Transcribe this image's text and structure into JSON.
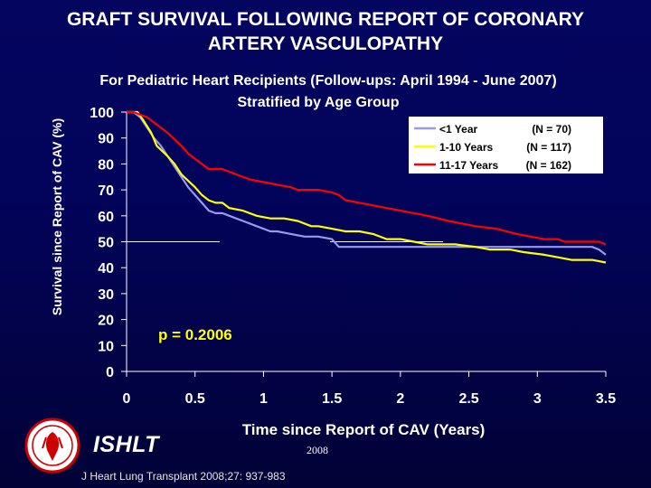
{
  "title": {
    "line1": "GRAFT SURVIVAL FOLLOWING REPORT OF CORONARY",
    "line2": "ARTERY VASCULOPATHY"
  },
  "chart_data": {
    "type": "line",
    "subtitle": "For Pediatric Heart Recipients (Follow-ups: April 1994 - June 2007)",
    "subtitle2": "Stratified by Age Group",
    "xlabel": "Time since Report of CAV (Years)",
    "ylabel": "Survival since Report of CAV (%)",
    "xlim": [
      0,
      3.5
    ],
    "ylim": [
      0,
      100
    ],
    "xticks": [
      0,
      0.5,
      1,
      1.5,
      2,
      2.5,
      3,
      3.5
    ],
    "xtick_labels": [
      "0",
      "0.5",
      "1",
      "1.5",
      "2",
      "2.5",
      "3",
      "3.5"
    ],
    "yticks": [
      0,
      10,
      20,
      30,
      40,
      50,
      60,
      70,
      80,
      90,
      100
    ],
    "ytick_labels": [
      "0",
      "10",
      "20",
      "30",
      "40",
      "50",
      "60",
      "70",
      "80",
      "90",
      "100"
    ],
    "annotation": "p = 0.2006",
    "legend_position": "top-right",
    "series": [
      {
        "name": "<1 Year",
        "n_label": "(N = 70)",
        "color": "#9999ee",
        "points": [
          [
            0,
            100
          ],
          [
            0.05,
            100
          ],
          [
            0.1,
            98
          ],
          [
            0.15,
            94
          ],
          [
            0.2,
            90
          ],
          [
            0.25,
            87
          ],
          [
            0.3,
            83
          ],
          [
            0.35,
            79
          ],
          [
            0.4,
            75
          ],
          [
            0.45,
            71
          ],
          [
            0.5,
            68
          ],
          [
            0.55,
            65
          ],
          [
            0.6,
            62
          ],
          [
            0.65,
            61
          ],
          [
            0.7,
            61
          ],
          [
            0.75,
            60
          ],
          [
            0.8,
            59
          ],
          [
            0.85,
            58
          ],
          [
            0.9,
            57
          ],
          [
            0.95,
            56
          ],
          [
            1.0,
            55
          ],
          [
            1.05,
            54
          ],
          [
            1.1,
            54
          ],
          [
            1.2,
            53
          ],
          [
            1.3,
            52
          ],
          [
            1.4,
            52
          ],
          [
            1.5,
            51
          ],
          [
            1.55,
            48
          ],
          [
            1.7,
            48
          ],
          [
            2.0,
            48
          ],
          [
            2.5,
            48
          ],
          [
            3.0,
            48
          ],
          [
            3.4,
            48
          ],
          [
            3.45,
            47
          ],
          [
            3.5,
            45
          ]
        ]
      },
      {
        "name": "1-10 Years",
        "n_label": "(N = 117)",
        "color": "#ffff00",
        "points": [
          [
            0,
            100
          ],
          [
            0.08,
            100
          ],
          [
            0.12,
            97
          ],
          [
            0.18,
            92
          ],
          [
            0.22,
            87
          ],
          [
            0.3,
            83
          ],
          [
            0.35,
            80
          ],
          [
            0.4,
            76
          ],
          [
            0.5,
            71
          ],
          [
            0.55,
            68
          ],
          [
            0.6,
            66
          ],
          [
            0.65,
            65
          ],
          [
            0.7,
            65
          ],
          [
            0.75,
            63
          ],
          [
            0.85,
            62
          ],
          [
            0.95,
            60
          ],
          [
            1.05,
            59
          ],
          [
            1.15,
            59
          ],
          [
            1.25,
            58
          ],
          [
            1.35,
            56
          ],
          [
            1.4,
            56
          ],
          [
            1.5,
            55
          ],
          [
            1.6,
            54
          ],
          [
            1.7,
            54
          ],
          [
            1.8,
            53
          ],
          [
            1.9,
            51
          ],
          [
            2.0,
            51
          ],
          [
            2.1,
            50
          ],
          [
            2.2,
            49
          ],
          [
            2.4,
            49
          ],
          [
            2.55,
            48
          ],
          [
            2.65,
            47
          ],
          [
            2.8,
            47
          ],
          [
            2.9,
            46
          ],
          [
            3.05,
            45
          ],
          [
            3.15,
            44
          ],
          [
            3.25,
            43
          ],
          [
            3.4,
            43
          ],
          [
            3.5,
            42
          ]
        ]
      },
      {
        "name": "11-17 Years",
        "n_label": "(N = 162)",
        "color": "#ff0000",
        "points": [
          [
            0,
            100
          ],
          [
            0.05,
            100
          ],
          [
            0.1,
            99
          ],
          [
            0.15,
            98
          ],
          [
            0.2,
            96
          ],
          [
            0.25,
            94
          ],
          [
            0.3,
            92
          ],
          [
            0.4,
            87
          ],
          [
            0.45,
            84
          ],
          [
            0.5,
            82
          ],
          [
            0.55,
            80
          ],
          [
            0.6,
            78
          ],
          [
            0.7,
            78
          ],
          [
            0.8,
            76
          ],
          [
            0.9,
            74
          ],
          [
            1.0,
            73
          ],
          [
            1.1,
            72
          ],
          [
            1.2,
            71
          ],
          [
            1.25,
            70
          ],
          [
            1.4,
            70
          ],
          [
            1.5,
            69
          ],
          [
            1.55,
            68
          ],
          [
            1.6,
            66
          ],
          [
            1.7,
            65
          ],
          [
            1.8,
            64
          ],
          [
            1.9,
            63
          ],
          [
            2.0,
            62
          ],
          [
            2.1,
            61
          ],
          [
            2.2,
            60
          ],
          [
            2.35,
            58
          ],
          [
            2.45,
            57
          ],
          [
            2.55,
            56
          ],
          [
            2.7,
            55
          ],
          [
            2.85,
            53
          ],
          [
            2.95,
            52
          ],
          [
            3.05,
            51
          ],
          [
            3.15,
            51
          ],
          [
            3.2,
            50
          ],
          [
            3.45,
            50
          ],
          [
            3.5,
            49
          ]
        ]
      }
    ]
  },
  "footer": {
    "logo_text": "ISHLT",
    "year": "2008",
    "citation": "J Heart Lung Transplant 2008;27: 937-983"
  }
}
